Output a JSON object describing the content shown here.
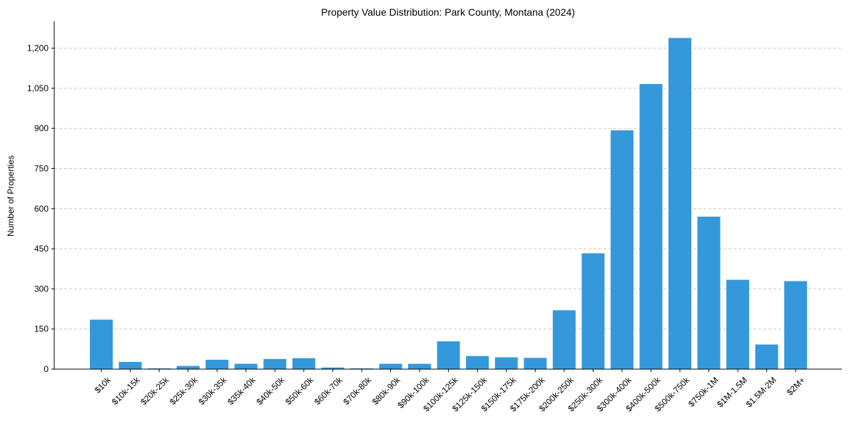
{
  "chart_data": {
    "type": "bar",
    "title": "Property Value Distribution: Park County, Montana (2024)",
    "xlabel": "",
    "ylabel": "Number of Properties",
    "ylim": [
      0,
      1330
    ],
    "yticks": [
      0,
      150,
      300,
      450,
      600,
      750,
      900,
      1050,
      1200
    ],
    "ytick_labels": [
      "0",
      "150",
      "300",
      "450",
      "600",
      "750",
      "900",
      "1,050",
      "1,200"
    ],
    "grid": "y-dashed",
    "bar_color": "#3498db",
    "categories": [
      "$10k",
      "$10k-15k",
      "$20k-25k",
      "$25k-30k",
      "$30k-35k",
      "$35k-40k",
      "$40k-50k",
      "$50k-60k",
      "$60k-70k",
      "$70k-80k",
      "$80k-90k",
      "$90k-100k",
      "$100k-125k",
      "$125k-150k",
      "$150k-175k",
      "$175k-200k",
      "$200k-250k",
      "$250k-300k",
      "$300k-400k",
      "$400k-500k",
      "$500k-750k",
      "$750k-1M",
      "$1M-1.5M",
      "$1.5M-2M",
      "$2M+"
    ],
    "values": [
      185,
      27,
      3,
      12,
      35,
      20,
      38,
      41,
      6,
      3,
      20,
      20,
      104,
      49,
      44,
      42,
      220,
      433,
      893,
      1066,
      1238,
      570,
      334,
      92,
      329
    ]
  }
}
